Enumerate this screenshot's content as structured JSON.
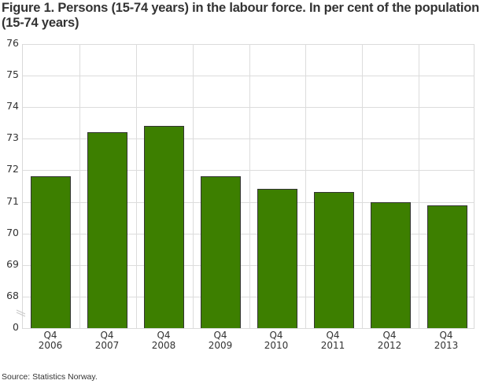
{
  "title": "Figure 1. Persons (15-74 years) in the labour force. In per cent of the population (15-74 years)",
  "source": "Source: Statistics Norway.",
  "colors": {
    "bar": "#3d7f00",
    "bar_border": "#333333",
    "grid": "#dcdcdc"
  },
  "y_ticks": [
    "76",
    "75",
    "74",
    "73",
    "72",
    "71",
    "70",
    "69",
    "68",
    "0"
  ],
  "x_labels": [
    {
      "q": "Q4",
      "year": "2006"
    },
    {
      "q": "Q4",
      "year": "2007"
    },
    {
      "q": "Q4",
      "year": "2008"
    },
    {
      "q": "Q4",
      "year": "2009"
    },
    {
      "q": "Q4",
      "year": "2010"
    },
    {
      "q": "Q4",
      "year": "2011"
    },
    {
      "q": "Q4",
      "year": "2012"
    },
    {
      "q": "Q4",
      "year": "2013"
    }
  ],
  "chart_data": {
    "type": "bar",
    "title": "Figure 1. Persons (15-74 years) in the labour force. In per cent of the population (15-74 years)",
    "categories": [
      "Q4 2006",
      "Q4 2007",
      "Q4 2008",
      "Q4 2009",
      "Q4 2010",
      "Q4 2011",
      "Q4 2012",
      "Q4 2013"
    ],
    "values": [
      71.8,
      73.2,
      73.4,
      71.8,
      71.4,
      71.3,
      71.0,
      70.9
    ],
    "xlabel": "",
    "ylabel": "",
    "ylim": [
      68,
      76
    ],
    "y_axis_break": "axis broken between 0 and 68",
    "yticks": [
      0,
      68,
      69,
      70,
      71,
      72,
      73,
      74,
      75,
      76
    ],
    "grid": true,
    "legend": null,
    "source": "Source: Statistics Norway."
  }
}
